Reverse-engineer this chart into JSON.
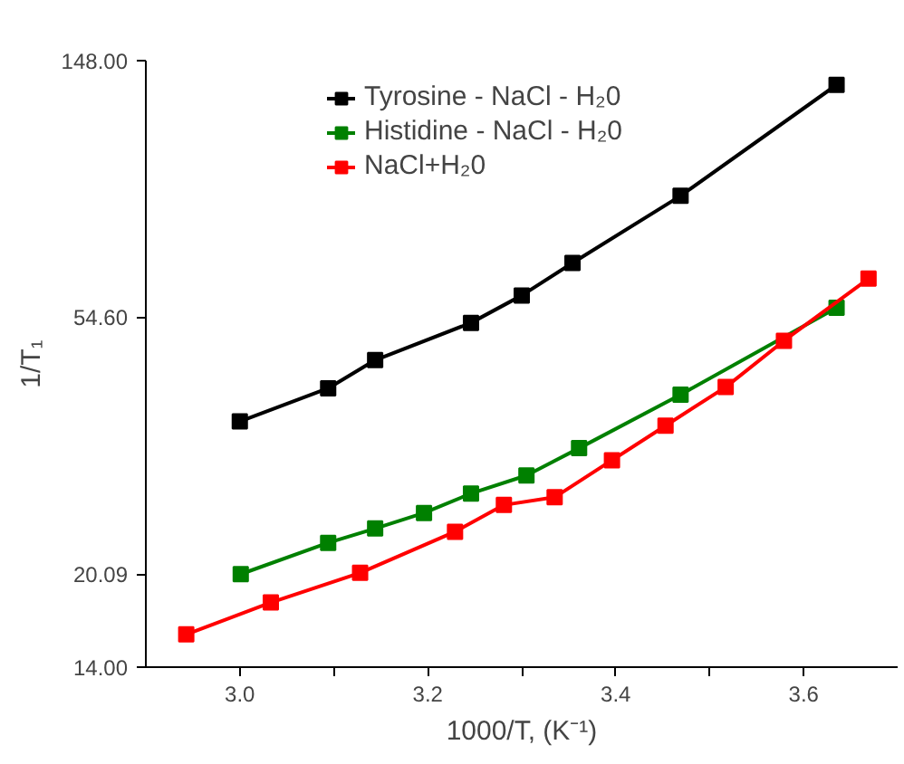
{
  "chart_data": {
    "type": "line",
    "xlabel": "1000/T, (K⁻¹)",
    "ylabel": "1/T₁",
    "log": "y",
    "marker": "square",
    "line_style": "solid",
    "legend": "top",
    "grid": false,
    "xlim": [
      2.9,
      3.7
    ],
    "xticks": [
      {
        "value": 3.0,
        "label": "3.0"
      },
      {
        "value": 3.1,
        "label": null
      },
      {
        "value": 3.2,
        "label": "3.2"
      },
      {
        "value": 3.3,
        "label": null
      },
      {
        "value": 3.4,
        "label": "3.4"
      },
      {
        "value": 3.5,
        "label": null
      },
      {
        "value": 3.6,
        "label": "3.6"
      }
    ],
    "ylim": [
      14,
      148
    ],
    "yticks": [
      {
        "value": 14,
        "label": "14.00"
      },
      {
        "value": 20.09,
        "label": "20.09"
      },
      {
        "value": 54.6,
        "label": "54.60"
      },
      {
        "value": 148,
        "label": "148.00"
      }
    ],
    "series": [
      {
        "name": "Tyrosine - NaCl - H₂0",
        "color": "#000000",
        "x": [
          3.0,
          3.094,
          3.144,
          3.246,
          3.3,
          3.354,
          3.469,
          3.635
        ],
        "values": [
          36.4,
          41.4,
          46.2,
          53.4,
          59.4,
          67.4,
          87.5,
          134.7
        ]
      },
      {
        "name": "Histidine - NaCl - H₂0",
        "color": "#008000",
        "x": [
          3.001,
          3.094,
          3.144,
          3.196,
          3.246,
          3.305,
          3.361,
          3.469,
          3.635
        ],
        "values": [
          20.1,
          22.7,
          24.0,
          25.5,
          27.5,
          29.5,
          32.8,
          40.4,
          56.6
        ]
      },
      {
        "name": "NaCl+H₂0",
        "color": "#ff0000",
        "x": [
          2.943,
          3.033,
          3.128,
          3.229,
          3.281,
          3.335,
          3.396,
          3.453,
          3.517,
          3.579,
          3.669
        ],
        "values": [
          15.9,
          18.0,
          20.2,
          23.7,
          26.3,
          27.1,
          31.3,
          35.8,
          41.6,
          49.8,
          63.4
        ]
      }
    ]
  }
}
